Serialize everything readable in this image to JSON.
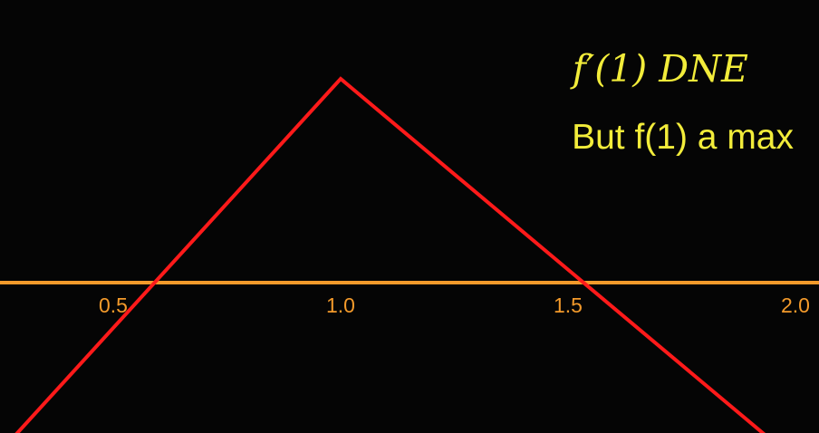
{
  "chart_data": {
    "type": "line",
    "title": "",
    "xlabel": "",
    "ylabel": "",
    "xlim": [
      0.25,
      2.0
    ],
    "ylim": [
      -0.5,
      0.55
    ],
    "x_ticks": [
      0.5,
      1.0,
      1.5,
      2.0
    ],
    "x_tick_labels": [
      "0.5",
      "1.0",
      "1.5",
      "2.0"
    ],
    "series": [
      {
        "color": "#ff1a1a",
        "x": [
          0.28,
          1.0,
          1.94
        ],
        "y": [
          -0.38,
          0.5,
          -0.38
        ]
      }
    ],
    "axis_color": "#f39a2b",
    "grid": false,
    "annotations": [
      "f′(1) DNE",
      "But f(1) a max"
    ],
    "annotation_color": "#f2ec3a"
  }
}
